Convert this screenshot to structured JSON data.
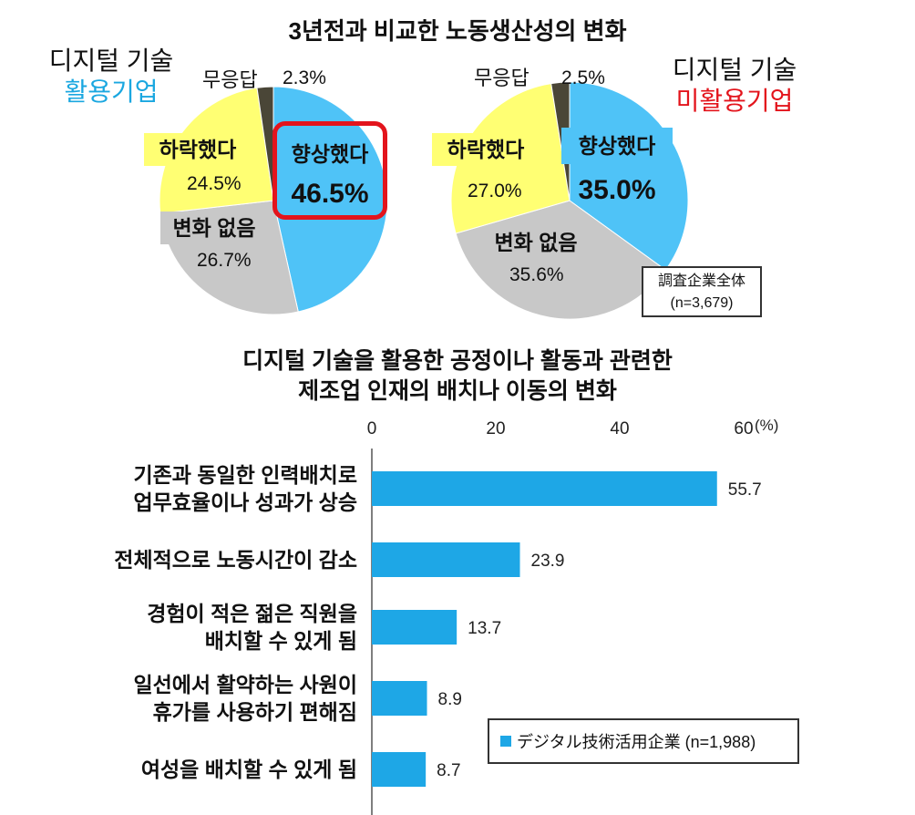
{
  "top_title": "3년전과 비교한 노동생산성의 변화",
  "pie_left": {
    "group_line1": "디지털 기술",
    "group_line2": "활용기업",
    "labels": {
      "no_answer": "무응답",
      "no_answer_value": "2.3%",
      "up": "향상했다",
      "up_value": "46.5%",
      "down": "하락했다",
      "down_value": "24.5%",
      "same": "변화 없음",
      "same_value": "26.7%"
    }
  },
  "pie_right": {
    "group_line1": "디지털 기술",
    "group_line2": "미활용기업",
    "labels": {
      "no_answer": "무응답",
      "no_answer_value": "2.5%",
      "up": "향상했다",
      "up_value": "35.0%",
      "down": "하락했다",
      "down_value": "27.0%",
      "same": "변화 없음",
      "same_value": "35.6%"
    }
  },
  "survey_box": {
    "line1": "調査企業全体",
    "line2": "(n=3,679)"
  },
  "bar_title_line1": "디지털 기술을 활용한 공정이나 활동과 관련한",
  "bar_title_line2": "제조업 인재의 배치나 이동의 변화",
  "bar_unit": "(%)",
  "legend_label": "デジタル技術活用企業 (n=1,988)",
  "colors": {
    "blue": "#4fc3f7",
    "bar_blue": "#1ea7e6",
    "yellow": "#ffff73",
    "gray": "#c8c8c8",
    "dark": "#4a4637",
    "red_frame": "#e3141c"
  },
  "chart_data": [
    {
      "type": "pie",
      "title": "디지털 기술 활용기업",
      "categories": [
        "향상했다",
        "변화 없음",
        "하락했다",
        "무응답"
      ],
      "values": [
        46.5,
        26.7,
        24.5,
        2.3
      ]
    },
    {
      "type": "pie",
      "title": "디지털 기술 미활용기업",
      "categories": [
        "향상했다",
        "변화 없음",
        "하락했다",
        "무응답"
      ],
      "values": [
        35.0,
        35.6,
        27.0,
        2.5
      ]
    },
    {
      "type": "bar",
      "orientation": "horizontal",
      "categories": [
        [
          "기존과 동일한 인력배치로",
          "업무효율이나 성과가 상승"
        ],
        [
          "전체적으로 노동시간이 감소"
        ],
        [
          "경험이 적은 젊은 직원을",
          "배치할 수 있게 됨"
        ],
        [
          "일선에서 활약하는 사원이",
          "휴가를 사용하기 편해짐"
        ],
        [
          "여성을 배치할 수 있게 됨"
        ]
      ],
      "values": [
        55.7,
        23.9,
        13.7,
        8.9,
        8.7
      ],
      "value_labels": [
        "55.7",
        "23.9",
        "13.7",
        "8.9",
        "8.7"
      ],
      "xticks": [
        "0",
        "20",
        "40",
        "60"
      ],
      "xlim": [
        0,
        60
      ],
      "legend_position": "bottom-right"
    }
  ]
}
